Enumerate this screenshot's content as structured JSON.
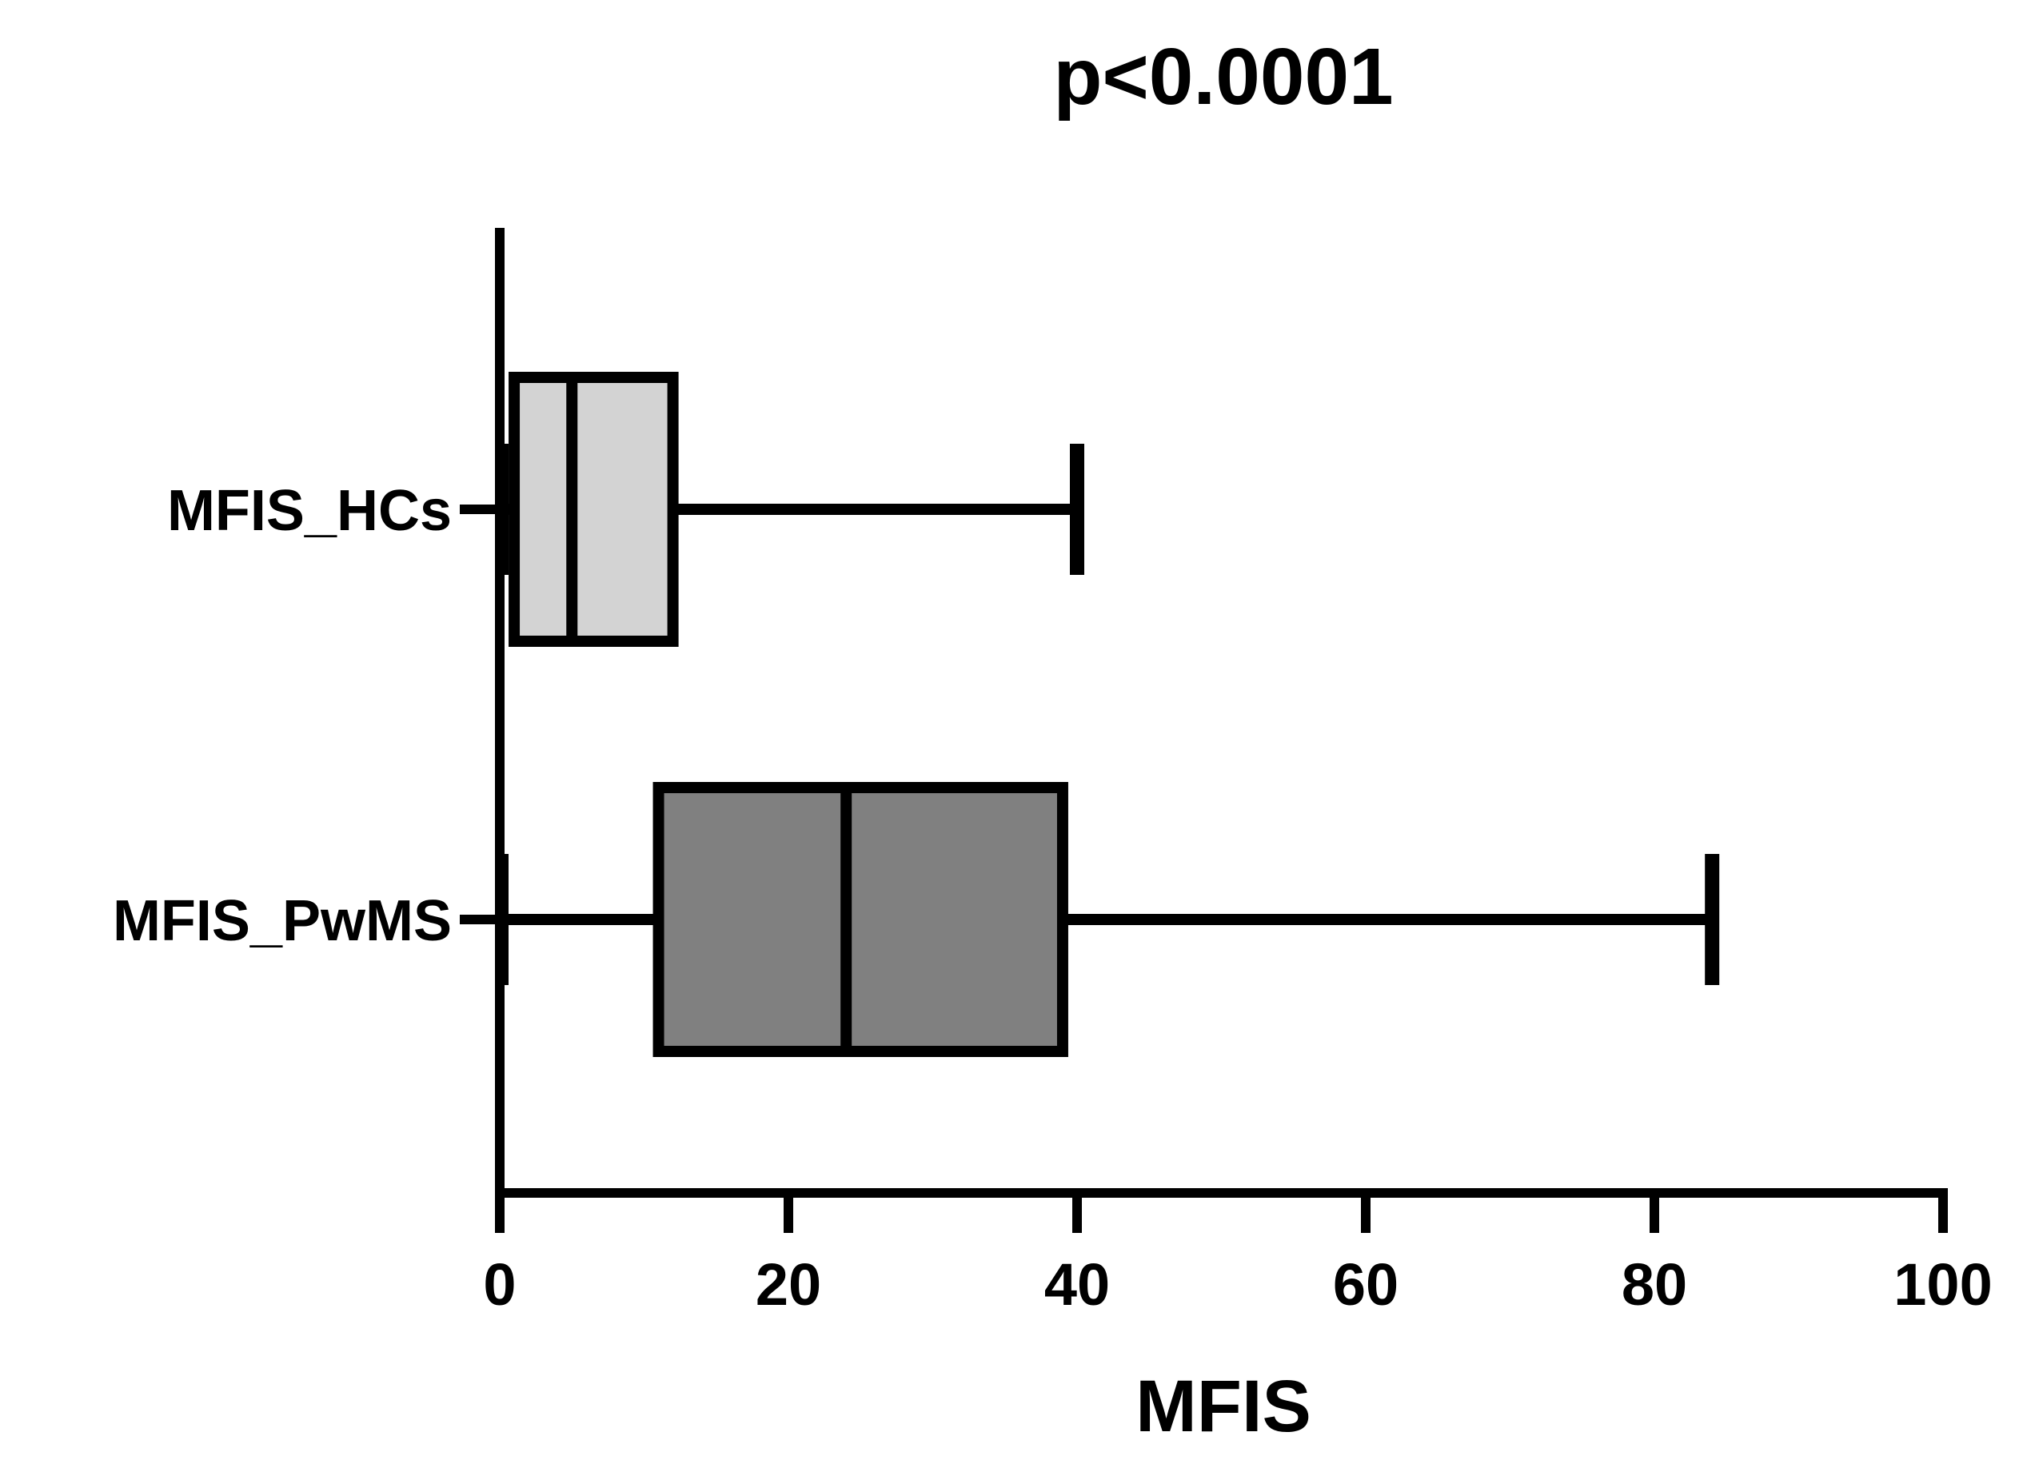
{
  "chart_data": {
    "type": "boxplot",
    "orientation": "horizontal",
    "title": "p<0.0001",
    "xlabel": "MFIS",
    "ylabel": "",
    "xlim": [
      0,
      100
    ],
    "x_ticks": [
      0,
      20,
      40,
      60,
      80,
      100
    ],
    "x_tick_labels": [
      "0",
      "20",
      "40",
      "60",
      "80",
      "100"
    ],
    "grid": false,
    "legend": "none",
    "series": [
      {
        "name": "MFIS_HCs",
        "min": 0,
        "q1": 1,
        "median": 5,
        "q3": 12,
        "max": 40,
        "fill": "#d3d3d3"
      },
      {
        "name": "MFIS_PwMS",
        "min": 0,
        "q1": 11,
        "median": 24,
        "q3": 39,
        "max": 84,
        "fill": "#808080"
      }
    ],
    "colors": {
      "axis": "#000000",
      "background": "#ffffff"
    }
  }
}
